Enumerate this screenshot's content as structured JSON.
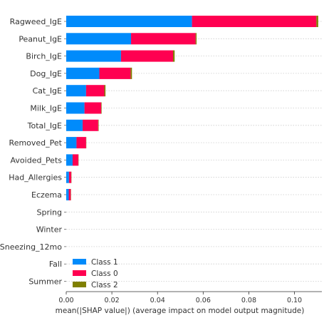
{
  "chart_data": {
    "type": "bar",
    "orientation": "horizontal",
    "stacked": true,
    "categories": [
      "Ragweed_IgE",
      "Peanut_IgE",
      "Birch_IgE",
      "Dog_IgE",
      "Cat_IgE",
      "Milk_IgE",
      "Total_IgE",
      "Removed_Pet",
      "Avoided_Pets",
      "Had_Allergies",
      "Eczema",
      "Spring",
      "Winter",
      "Sneezing_12mo",
      "Fall",
      "Summer"
    ],
    "series": [
      {
        "name": "Class 1",
        "color": "#008bfb",
        "values": [
          0.0551,
          0.0284,
          0.024,
          0.0145,
          0.0087,
          0.008,
          0.0072,
          0.0045,
          0.0028,
          0.0012,
          0.0011,
          0,
          0,
          0,
          0,
          0
        ]
      },
      {
        "name": "Class 0",
        "color": "#ff0051",
        "values": [
          0.0545,
          0.0283,
          0.0228,
          0.0137,
          0.008,
          0.0073,
          0.0068,
          0.0042,
          0.0025,
          0.001,
          0.0009,
          0,
          0,
          0,
          0,
          0
        ]
      },
      {
        "name": "Class 2",
        "color": "#7f7f00",
        "values": [
          0.0008,
          0.0004,
          0.0007,
          0.0006,
          0.0005,
          0.0002,
          0.0002,
          0.0001,
          0.0001,
          0.0001,
          0.0001,
          0,
          0,
          0,
          0,
          0
        ]
      }
    ],
    "xlabel": "mean(|SHAP value|) (average impact on model output magnitude)",
    "xlim": [
      0,
      0.112
    ],
    "xticks": [
      0.0,
      0.02,
      0.04,
      0.06,
      0.08,
      0.1
    ],
    "xtick_labels": [
      "0.00",
      "0.02",
      "0.04",
      "0.06",
      "0.08",
      "0.10"
    ],
    "grid": "horizontal dashed lines per category",
    "legend": {
      "placement": "lower-left",
      "entries": [
        "Class 1",
        "Class 0",
        "Class 2"
      ]
    }
  }
}
